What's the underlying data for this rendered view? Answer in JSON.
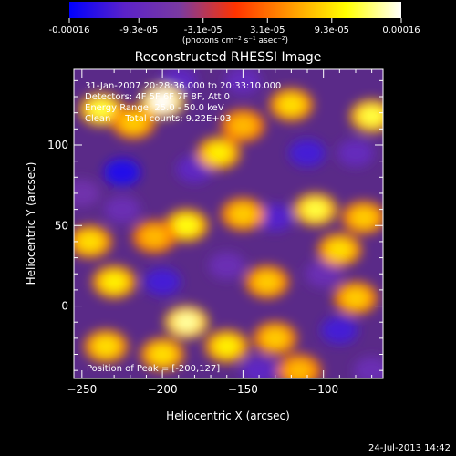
{
  "chart_data": {
    "type": "heatmap",
    "title": "Reconstructed RHESSI Image",
    "xlabel": "Heliocentric X (arcsec)",
    "ylabel": "Heliocentric Y (arcsec)",
    "xlim": [
      -255,
      -63
    ],
    "ylim": [
      -45,
      147
    ],
    "xticks": [
      -250,
      -200,
      -150,
      -100
    ],
    "yticks": [
      0,
      50,
      100
    ],
    "colorbar": {
      "min": -0.00016,
      "max": 0.00016,
      "tick_values": [
        -0.00016,
        -9.3e-05,
        -3.1e-05,
        3.1e-05,
        9.3e-05,
        0.00016
      ],
      "tick_labels": [
        "-0.00016",
        "-9.3e-05",
        "-3.1e-05",
        "3.1e-05",
        "9.3e-05",
        "0.00016"
      ],
      "units": "(photons cm⁻² s⁻¹ asec⁻²)",
      "colormap": [
        "#0000ff",
        "#5b22c8",
        "#7a3aa0",
        "#ff3300",
        "#ff9900",
        "#ffff00",
        "#ffffff"
      ]
    },
    "annotations": {
      "time_range": "31-Jan-2007 20:28:36.000 to 20:33:10.000",
      "detectors": "Detectors: 4F 5F 6F 7F 8F, Att 0",
      "energy_range": "Energy Range: 25.0 - 50.0 keV",
      "clean_counts": "Clean     Total counts: 9.22E+03",
      "peak_position": "Position of Peak = [-200,127]"
    },
    "peaks": [
      {
        "x": -238,
        "y": 122,
        "value": 0.00012
      },
      {
        "x": -218,
        "y": 114,
        "value": 8e-05
      },
      {
        "x": -200,
        "y": 127,
        "value": 0.00016
      },
      {
        "x": -120,
        "y": 125,
        "value": 9e-05
      },
      {
        "x": -70,
        "y": 118,
        "value": 0.00012
      },
      {
        "x": -165,
        "y": 95,
        "value": 0.0001
      },
      {
        "x": -150,
        "y": 112,
        "value": 7e-05
      },
      {
        "x": -150,
        "y": 57,
        "value": 8e-05
      },
      {
        "x": -185,
        "y": 50,
        "value": 0.00011
      },
      {
        "x": -205,
        "y": 43,
        "value": 7e-05
      },
      {
        "x": -245,
        "y": 40,
        "value": 9e-05
      },
      {
        "x": -230,
        "y": 15,
        "value": 0.0001
      },
      {
        "x": -105,
        "y": 60,
        "value": 0.00012
      },
      {
        "x": -75,
        "y": 55,
        "value": 8e-05
      },
      {
        "x": -90,
        "y": 35,
        "value": 9e-05
      },
      {
        "x": -135,
        "y": 15,
        "value": 8e-05
      },
      {
        "x": -185,
        "y": -10,
        "value": 0.00014
      },
      {
        "x": -200,
        "y": -30,
        "value": 9e-05
      },
      {
        "x": -160,
        "y": -25,
        "value": 0.0001
      },
      {
        "x": -130,
        "y": -20,
        "value": 8e-05
      },
      {
        "x": -115,
        "y": -40,
        "value": 7e-05
      },
      {
        "x": -80,
        "y": 5,
        "value": 8e-05
      },
      {
        "x": -235,
        "y": -25,
        "value": 9e-05
      }
    ],
    "troughs": [
      {
        "x": -225,
        "y": 83,
        "value": -0.00014
      },
      {
        "x": -180,
        "y": 85,
        "value": -0.0001
      },
      {
        "x": -225,
        "y": 60,
        "value": -8e-05
      },
      {
        "x": -200,
        "y": 15,
        "value": -0.00012
      },
      {
        "x": -160,
        "y": 25,
        "value": -8e-05
      },
      {
        "x": -130,
        "y": 55,
        "value": -0.00011
      },
      {
        "x": -110,
        "y": 95,
        "value": -0.00012
      },
      {
        "x": -80,
        "y": 95,
        "value": -9e-05
      },
      {
        "x": -150,
        "y": 140,
        "value": -9e-05
      },
      {
        "x": -190,
        "y": 140,
        "value": -0.0001
      },
      {
        "x": -250,
        "y": 70,
        "value": -7e-05
      },
      {
        "x": -140,
        "y": -40,
        "value": -0.0001
      },
      {
        "x": -90,
        "y": -15,
        "value": -0.00012
      },
      {
        "x": -70,
        "y": -40,
        "value": -8e-05
      },
      {
        "x": -100,
        "y": 20,
        "value": -8e-05
      }
    ]
  },
  "footer": {
    "date": "24-Jul-2013 14:42"
  }
}
